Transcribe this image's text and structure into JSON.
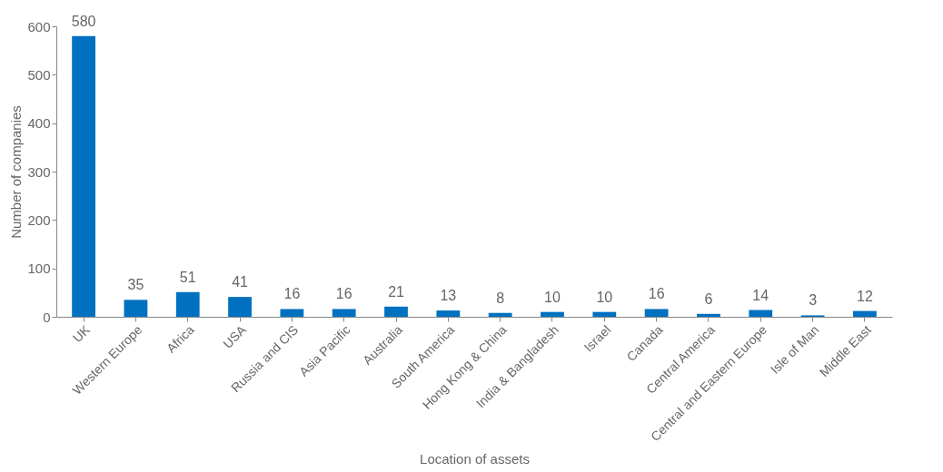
{
  "chart_data": {
    "type": "bar",
    "xlabel": "Location of assets",
    "ylabel": "Number of companies",
    "categories": [
      "UK",
      "Western Europe",
      "Africa",
      "USA",
      "Russia and CIS",
      "Asia Pacific",
      "Australia",
      "South America",
      "Hong Kong & China",
      "India & Bangladesh",
      "Israel",
      "Canada",
      "Central America",
      "Central and Eastern Europe",
      "Isle of Man",
      "Middle East"
    ],
    "values": [
      580,
      35,
      51,
      41,
      16,
      16,
      21,
      13,
      8,
      10,
      10,
      16,
      6,
      14,
      3,
      12
    ],
    "color": "#0070c0",
    "ylim": [
      0,
      600
    ],
    "yticks": [
      0,
      100,
      200,
      300,
      400,
      500,
      600
    ],
    "grid": false,
    "data_labels": true
  }
}
